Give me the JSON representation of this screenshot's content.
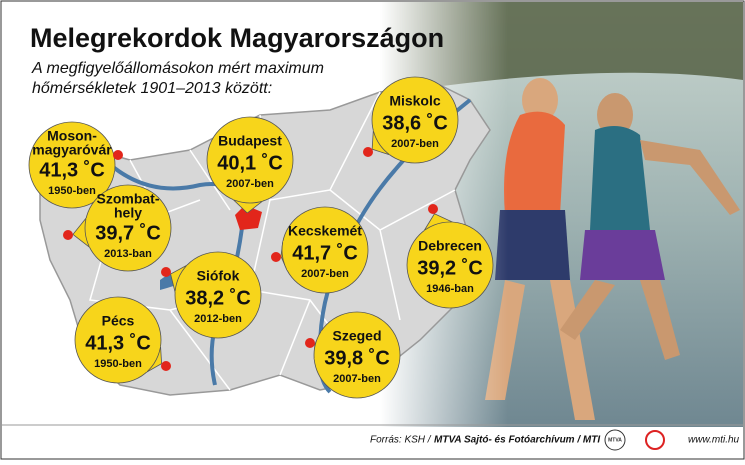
{
  "header": {
    "title": "Melegrekordok Magyarországon",
    "subtitle": [
      "A megfigyelőállomásokon mért maximum",
      "hőmérsékletek 1901–2013 között:"
    ]
  },
  "cities": [
    {
      "name": [
        "Moson-",
        "magyaróvár"
      ],
      "temperature": "41,3 ˚C",
      "year": "1950-ben"
    },
    {
      "name": [
        "Szombat-",
        "hely"
      ],
      "temperature": "39,7 ˚C",
      "year": "2013-ban"
    },
    {
      "name": [
        "Budapest"
      ],
      "temperature": "40,1 ˚C",
      "year": "2007-ben"
    },
    {
      "name": [
        "Miskolc"
      ],
      "temperature": "38,6 ˚C",
      "year": "2007-ben"
    },
    {
      "name": [
        "Kecskemét"
      ],
      "temperature": "41,7 ˚C",
      "year": "2007-ben"
    },
    {
      "name": [
        "Debrecen"
      ],
      "temperature": "39,2 ˚C",
      "year": "1946-ban"
    },
    {
      "name": [
        "Siófok"
      ],
      "temperature": "38,2 ˚C",
      "year": "2012-ben"
    },
    {
      "name": [
        "Pécs"
      ],
      "temperature": "41,3 ˚C",
      "year": "1950-ben"
    },
    {
      "name": [
        "Szeged"
      ],
      "temperature": "39,8 ˚C",
      "year": "2007-ben"
    }
  ],
  "footer": {
    "source_prefix": "Forrás: KSH / ",
    "source_main": "MTVA Sajtó- és Fotóarchívum / MTI",
    "logo": "MTVA",
    "url": "www.mti.hu"
  }
}
